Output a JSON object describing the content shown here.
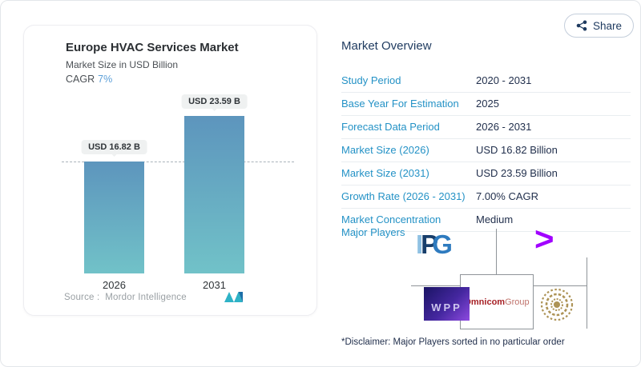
{
  "share_button": {
    "label": "Share"
  },
  "chart_card": {
    "title": "Europe HVAC Services Market",
    "subtitle": "Market Size in USD Billion",
    "cagr_label": "CAGR",
    "cagr_value": "7%",
    "source_label": "Source :",
    "source_name": "Mordor Intelligence"
  },
  "chart_data": {
    "type": "bar",
    "title": "Europe HVAC Services Market",
    "ylabel": "Market Size in USD Billion",
    "categories": [
      "2026",
      "2031"
    ],
    "values": [
      16.82,
      23.59
    ],
    "value_labels": [
      "USD 16.82 B",
      "USD 23.59 B"
    ],
    "ylim": [
      0,
      23.59
    ],
    "reference_line": 16.82,
    "cagr": "7%",
    "grid": false,
    "legend": "none",
    "bar_gradient": [
      "#5d95bd",
      "#71c2c8"
    ]
  },
  "market_overview": {
    "title": "Market Overview",
    "rows": [
      {
        "label": "Study Period",
        "value": "2020 - 2031"
      },
      {
        "label": "Base Year For Estimation",
        "value": "2025"
      },
      {
        "label": "Forecast Data Period",
        "value": "2026 - 2031"
      },
      {
        "label": "Market Size (2026)",
        "value": "USD 16.82 Billion"
      },
      {
        "label": "Market Size (2031)",
        "value": "USD 23.59 Billion"
      },
      {
        "label": "Growth Rate (2026 - 2031)",
        "value": "7.00% CAGR"
      },
      {
        "label": "Market Concentration",
        "value": "Medium"
      }
    ],
    "major_players_label": "Major Players",
    "major_players": [
      "IPG",
      "Accenture",
      "WPP",
      "Omnicom Group",
      "Publicis Groupe"
    ],
    "logo_texts": {
      "ipg": {
        "i": "I",
        "p": "P",
        "g": "G"
      },
      "accenture": ">",
      "wpp": "WPP",
      "omnicom_bold": "Omnicom",
      "omnicom_light": "Group"
    },
    "disclaimer": "*Disclaimer: Major Players sorted in no particular order"
  },
  "colors": {
    "accent_blue": "#2492c6",
    "navy_text": "#22304d",
    "accenture_purple": "#a100ff",
    "omnicom_red": "#a61f24",
    "publicis_gold": "#ad9356",
    "wpp_gradient": [
      "#1a1464",
      "#8e4ae0"
    ],
    "mordor_teal": "#2eb2c6",
    "mordor_blue": "#1c6fa8"
  }
}
